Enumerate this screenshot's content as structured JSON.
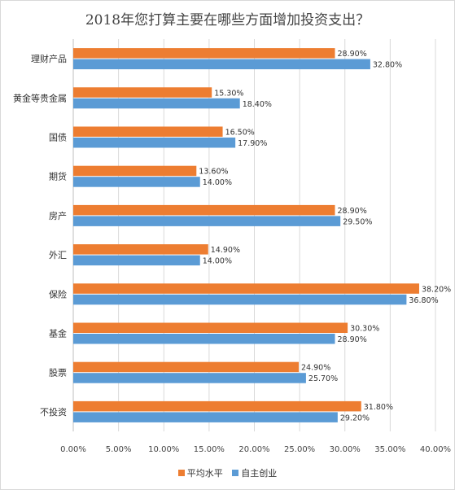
{
  "chart_data": {
    "type": "bar",
    "orientation": "horizontal",
    "title": "2018年您打算主要在哪些方面增加投资支出？",
    "categories": [
      "理财产品",
      "黄金等贵金属",
      "国债",
      "期货",
      "房产",
      "外汇",
      "保险",
      "基金",
      "股票",
      "不投资"
    ],
    "series": [
      {
        "name": "平均水平",
        "color": "#ED7D31",
        "values": [
          28.9,
          15.3,
          16.5,
          13.6,
          28.9,
          14.9,
          38.2,
          30.3,
          24.9,
          31.8
        ]
      },
      {
        "name": "自主创业",
        "color": "#5B9BD5",
        "values": [
          32.8,
          18.4,
          17.9,
          14.0,
          29.5,
          14.0,
          36.8,
          28.9,
          25.7,
          29.2
        ]
      }
    ],
    "data_labels": [
      [
        "28.90%",
        "15.30%",
        "16.50%",
        "13.60%",
        "28.90%",
        "14.90%",
        "38.20%",
        "30.30%",
        "24.90%",
        "31.80%"
      ],
      [
        "32.80%",
        "18.40%",
        "17.90%",
        "14.00%",
        "29.50%",
        "14.00%",
        "36.80%",
        "28.90%",
        "25.70%",
        "29.20%"
      ]
    ],
    "xlim": [
      0,
      40
    ],
    "xticks": [
      0,
      5,
      10,
      15,
      20,
      25,
      30,
      35,
      40
    ],
    "xtick_labels": [
      "0.00%",
      "5.00%",
      "10.00%",
      "15.00%",
      "20.00%",
      "25.00%",
      "30.00%",
      "35.00%",
      "40.00%"
    ],
    "grid": "vertical",
    "legend_position": "bottom"
  }
}
